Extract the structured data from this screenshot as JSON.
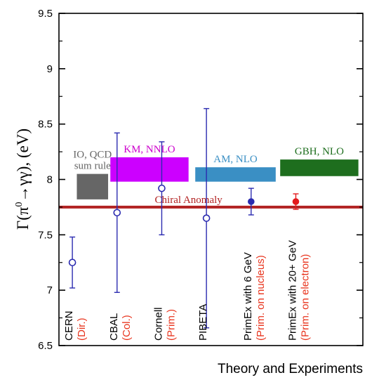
{
  "chart_data": {
    "type": "scatter",
    "xlabel": "Theory and Experiments",
    "ylabel": "Γ(π⁰→γγ), (eV)",
    "ylabel_parts": {
      "pre": "Γ(π",
      "sup": "0",
      "post": "→γγ), (eV)"
    },
    "ylim": [
      6.5,
      9.5
    ],
    "yticks": [
      "6.5",
      "7",
      "7.5",
      "8",
      "8.5",
      "9",
      "9.5"
    ],
    "ytick_values": [
      6.5,
      7,
      7.5,
      8,
      8.5,
      9,
      9.5
    ],
    "grid": false,
    "chiral_anomaly": {
      "label": "Chiral Anomaly",
      "value": 7.75,
      "color": "#b22222"
    },
    "theory_bands": [
      {
        "name": "IO, QCD sum rule",
        "label_lines": [
          "IO, QCD",
          "sum rule"
        ],
        "ymin": 7.82,
        "ymax": 8.05,
        "color": "#666666",
        "label_color": "#666666",
        "slot": [
          0.3,
          1.0
        ]
      },
      {
        "name": "KM, NNLO",
        "label_lines": [
          "KM, NNLO"
        ],
        "ymin": 7.98,
        "ymax": 8.2,
        "color": "#cc00ff",
        "label_color": "#cc00cc",
        "slot": [
          1.05,
          2.8
        ]
      },
      {
        "name": "AM, NLO",
        "label_lines": [
          "AM, NLO"
        ],
        "ymin": 7.98,
        "ymax": 8.11,
        "color": "#3a8fc4",
        "label_color": "#3a8fc4",
        "slot": [
          2.95,
          4.75
        ]
      },
      {
        "name": "GBH, NLO",
        "label_lines": [
          "GBH, NLO"
        ],
        "ymin": 8.03,
        "ymax": 8.18,
        "color": "#1e6e1e",
        "label_color": "#1e6e1e",
        "slot": [
          4.85,
          6.6
        ]
      }
    ],
    "experiments": [
      {
        "name": "CERN",
        "method": "(Dir.)",
        "value": 7.25,
        "err_low": 7.02,
        "err_high": 7.48,
        "marker": "open",
        "color": "#2b2bb0"
      },
      {
        "name": "CBAL",
        "method": "(Col.)",
        "value": 7.7,
        "err_low": 6.98,
        "err_high": 8.42,
        "marker": "open",
        "color": "#2b2bb0"
      },
      {
        "name": "Cornell",
        "method": "(Prim.)",
        "value": 7.92,
        "err_low": 7.5,
        "err_high": 8.34,
        "marker": "open",
        "color": "#2b2bb0"
      },
      {
        "name": "PIBETA",
        "method": "",
        "value": 7.65,
        "err_low": 6.66,
        "err_high": 8.64,
        "marker": "open",
        "color": "#2b2bb0"
      },
      {
        "name": "PrimEx with 6 GeV",
        "method": "(Prim. on nucleus)",
        "value": 7.8,
        "err_low": 7.68,
        "err_high": 7.92,
        "marker": "filled",
        "color": "#2b2bb0"
      },
      {
        "name": "PrimEx with 20+ GeV",
        "method": "(Prim. on electron)",
        "value": 7.8,
        "err_low": 7.73,
        "err_high": 7.87,
        "marker": "filled",
        "color": "#e31a1c"
      }
    ],
    "method_color": "#e8331c"
  }
}
